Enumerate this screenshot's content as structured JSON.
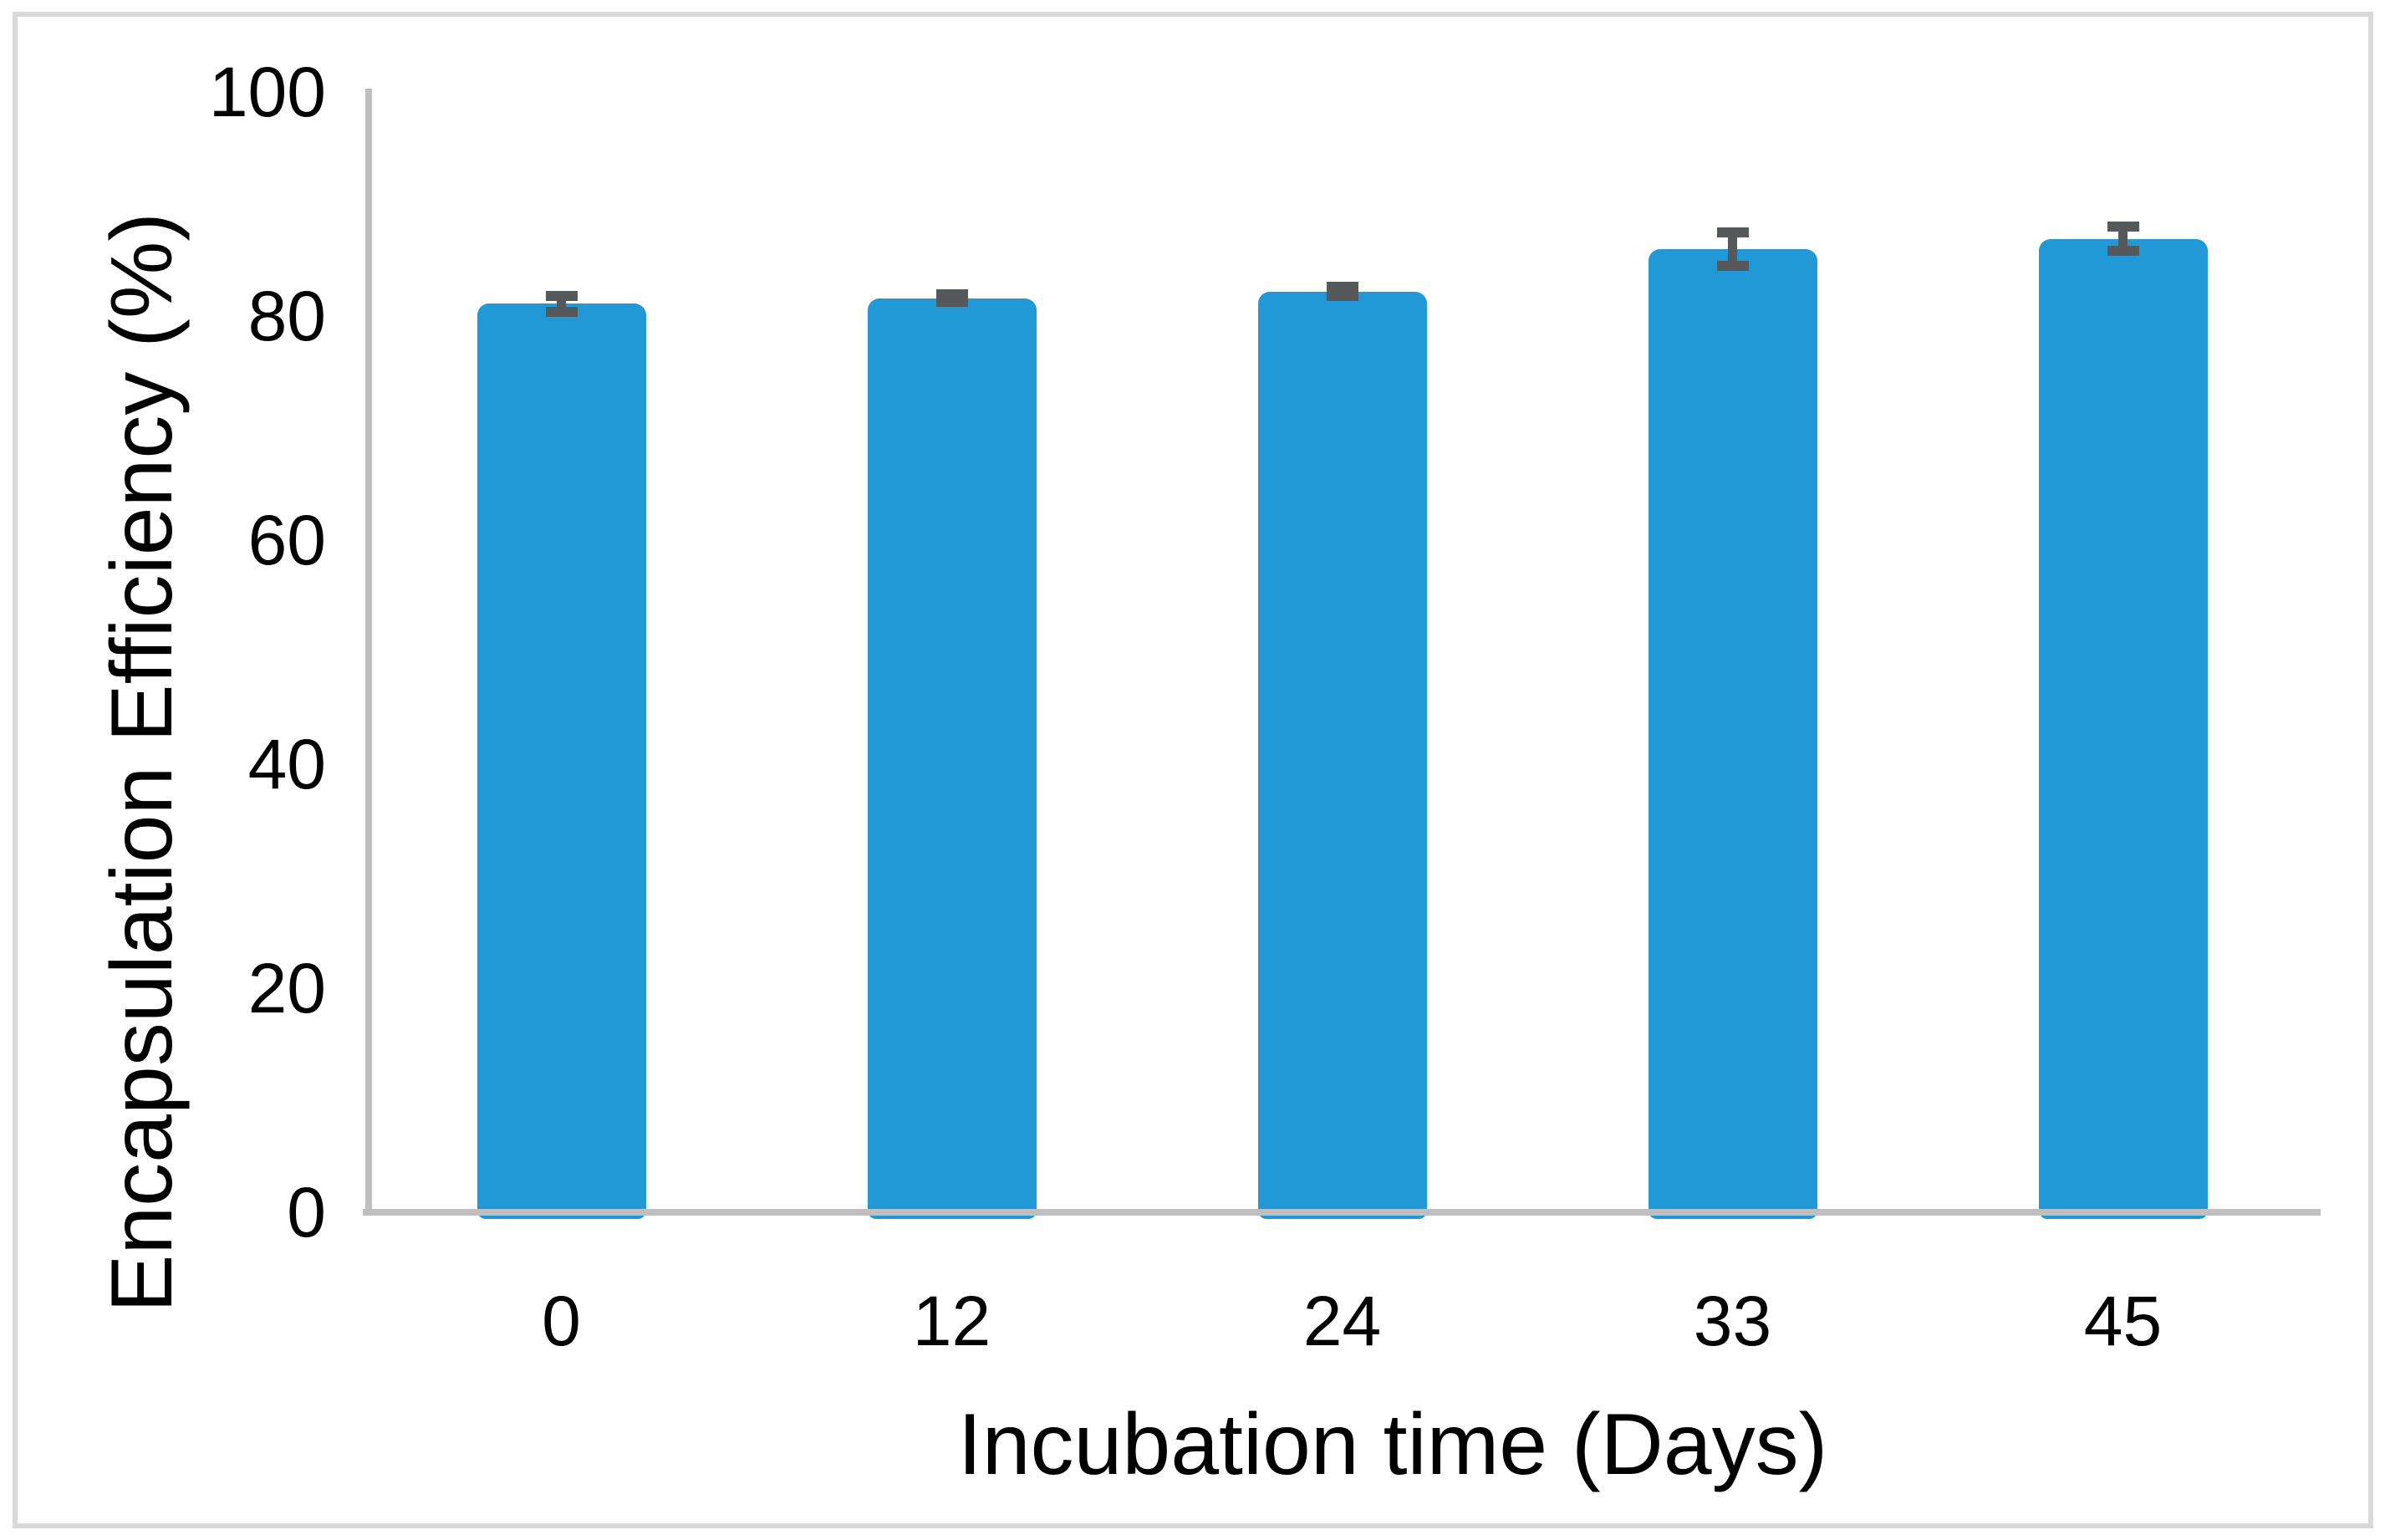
{
  "chart_data": {
    "type": "bar",
    "title": "",
    "xlabel": "Incubation time (Days)",
    "ylabel": "Encapsulation Efficiency (%)",
    "categories": [
      "0",
      "12",
      "24",
      "33",
      "45"
    ],
    "values": [
      81.1,
      81.6,
      82.2,
      86.0,
      86.9
    ],
    "errors": [
      0.7,
      0.35,
      0.4,
      1.5,
      1.1
    ],
    "ylim": [
      0,
      100
    ],
    "yticks": [
      0,
      20,
      40,
      60,
      80,
      100
    ],
    "grid": false,
    "legend": "none",
    "bar_color": "#2099D6",
    "error_bar_color": "#56595C",
    "axis_line_color": "#BFBFBF",
    "frame_border_color": "#D9D9D9",
    "text_color": "#000000"
  }
}
